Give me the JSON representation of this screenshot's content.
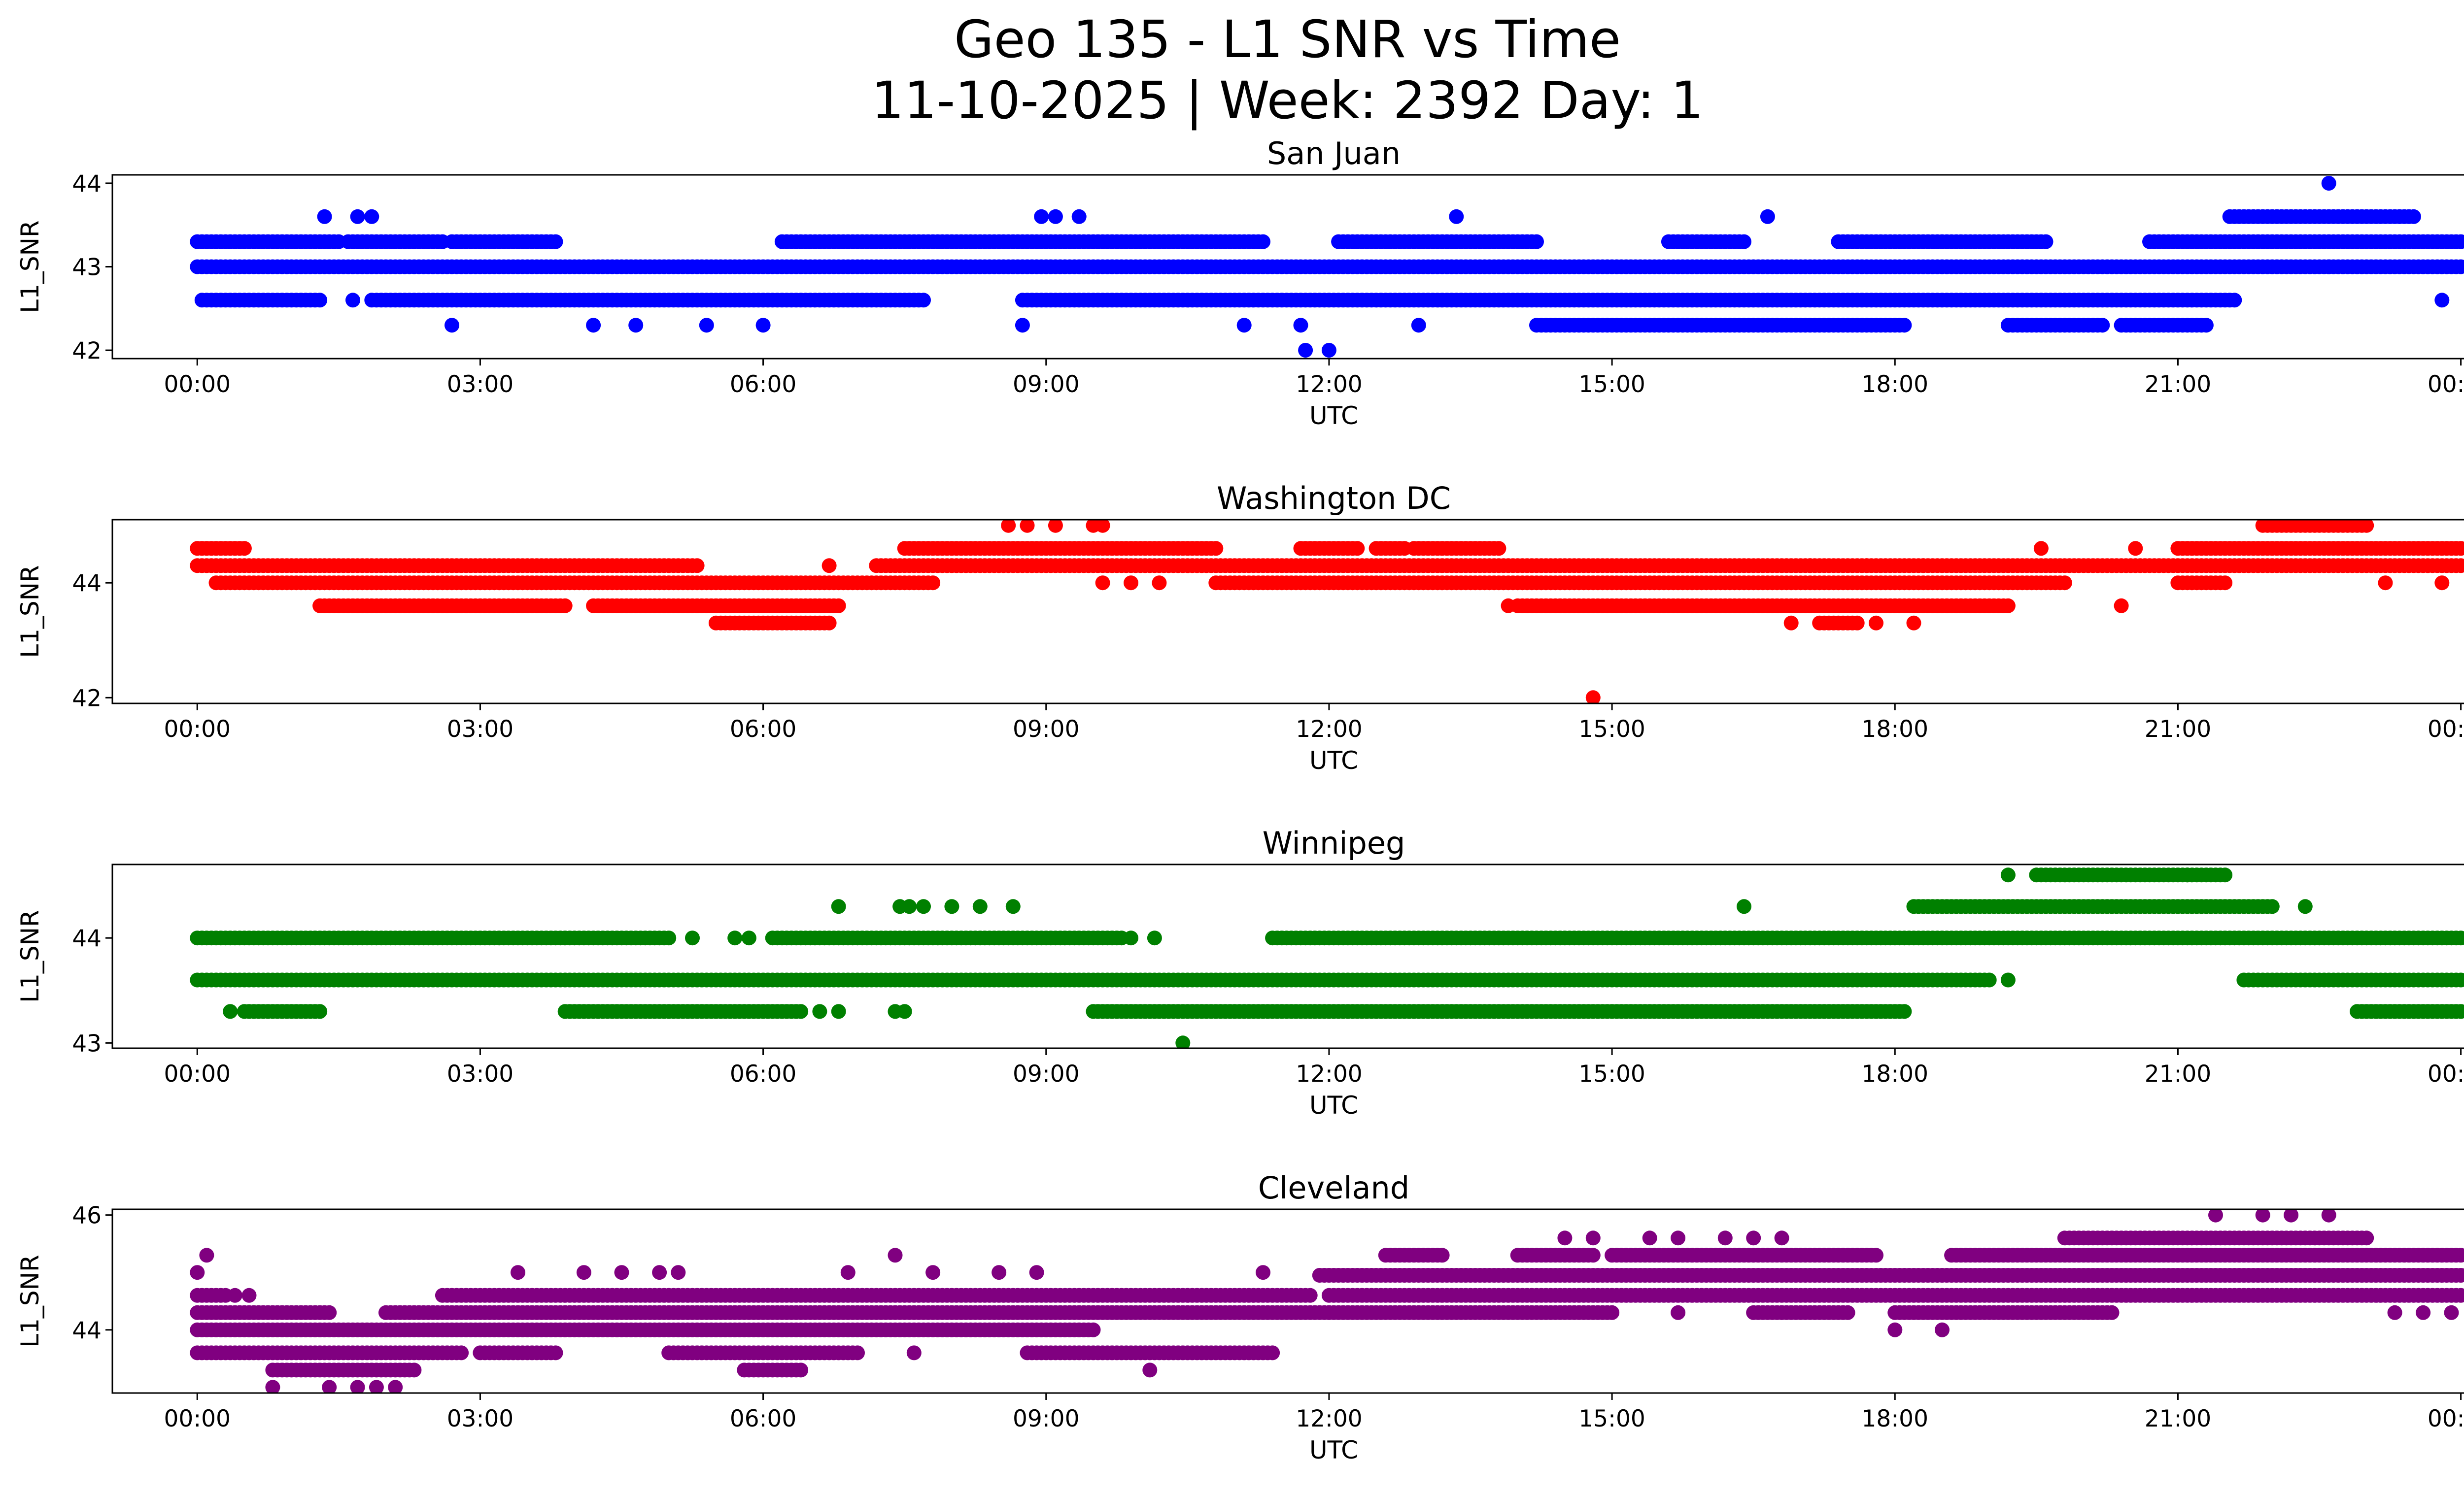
{
  "figure": {
    "title_line1": "Geo 135 - L1 SNR vs Time",
    "title_line2": "11-10-2025 | Week: 2392 Day: 1"
  },
  "chart_data": [
    {
      "type": "scatter",
      "title": "San Juan",
      "xlabel": "UTC",
      "ylabel": "L1_SNR",
      "color": "#0000ff",
      "xlim": [
        -0.9,
        25.0
      ],
      "ylim": [
        41.9,
        44.1
      ],
      "yticks": [
        42,
        43,
        44
      ],
      "xticks": [
        0,
        3,
        6,
        9,
        12,
        15,
        18,
        21,
        24
      ],
      "xtick_labels": [
        "00:00",
        "03:00",
        "06:00",
        "09:00",
        "12:00",
        "15:00",
        "18:00",
        "21:00",
        "00:00"
      ],
      "series": [
        {
          "name": "San Juan",
          "bands": [
            {
              "y": 43.0,
              "segments": [
                [
                  0,
                  24
                ]
              ]
            },
            {
              "y": 43.3,
              "segments": [
                [
                  0,
                  1.5
                ],
                [
                  1.6,
                  2.6
                ],
                [
                  2.7,
                  3.8
                ],
                [
                  6.2,
                  11.3
                ],
                [
                  12.1,
                  14.2
                ],
                [
                  15.6,
                  16.4
                ],
                [
                  17.4,
                  19.6
                ],
                [
                  20.7,
                  24
                ]
              ]
            },
            {
              "y": 42.6,
              "segments": [
                [
                  0.05,
                  1.3
                ],
                [
                  1.85,
                  7.7
                ],
                [
                  8.75,
                  21.6
                ]
              ]
            },
            {
              "y": 42.3,
              "segments": [
                [
                  14.2,
                  18.1
                ],
                [
                  19.2,
                  20.2
                ],
                [
                  20.4,
                  21.3
                ]
              ]
            },
            {
              "y": 43.6,
              "segments": [
                [
                  21.55,
                  23.5
                ]
              ]
            }
          ],
          "points": [
            [
              1.35,
              43.6
            ],
            [
              1.7,
              43.6
            ],
            [
              1.85,
              43.6
            ],
            [
              8.95,
              43.6
            ],
            [
              9.1,
              43.6
            ],
            [
              9.35,
              43.6
            ],
            [
              13.35,
              43.6
            ],
            [
              16.65,
              43.6
            ],
            [
              23.35,
              43.6
            ],
            [
              22.6,
              44.0
            ],
            [
              11.75,
              42.0
            ],
            [
              12.0,
              42.0
            ],
            [
              2.7,
              42.3
            ],
            [
              4.2,
              42.3
            ],
            [
              4.65,
              42.3
            ],
            [
              5.4,
              42.3
            ],
            [
              6.0,
              42.3
            ],
            [
              8.75,
              42.3
            ],
            [
              11.1,
              42.3
            ],
            [
              11.7,
              42.3
            ],
            [
              12.95,
              42.3
            ],
            [
              1.65,
              42.6
            ],
            [
              23.8,
              42.6
            ],
            [
              22.6,
              43.0
            ]
          ]
        }
      ]
    },
    {
      "type": "scatter",
      "title": "Washington DC",
      "xlabel": "UTC",
      "ylabel": "L1_SNR",
      "color": "#ff0000",
      "xlim": [
        -0.9,
        25.0
      ],
      "ylim": [
        41.9,
        45.1
      ],
      "yticks": [
        42,
        44
      ],
      "xticks": [
        0,
        3,
        6,
        9,
        12,
        15,
        18,
        21,
        24
      ],
      "xtick_labels": [
        "00:00",
        "03:00",
        "06:00",
        "09:00",
        "12:00",
        "15:00",
        "18:00",
        "21:00",
        "00:00"
      ],
      "series": [
        {
          "name": "Washington DC",
          "bands": [
            {
              "y": 44.3,
              "segments": [
                [
                  0,
                  5.3
                ],
                [
                  7.2,
                  24
                ]
              ]
            },
            {
              "y": 44.6,
              "segments": [
                [
                  0,
                  0.5
                ],
                [
                  7.5,
                  10.8
                ],
                [
                  11.7,
                  12.3
                ],
                [
                  12.5,
                  12.8
                ],
                [
                  12.9,
                  13.8
                ],
                [
                  21.0,
                  24
                ]
              ]
            },
            {
              "y": 44.0,
              "segments": [
                [
                  0.2,
                  7.8
                ],
                [
                  10.8,
                  19.8
                ],
                [
                  21.0,
                  21.5
                ]
              ]
            },
            {
              "y": 43.6,
              "segments": [
                [
                  1.3,
                  3.9
                ],
                [
                  4.2,
                  6.8
                ],
                [
                  14.0,
                  19.2
                ]
              ]
            },
            {
              "y": 43.3,
              "segments": [
                [
                  5.5,
                  6.7
                ],
                [
                  17.2,
                  17.6
                ]
              ]
            },
            {
              "y": 45.0,
              "segments": [
                [
                  21.9,
                  23.0
                ]
              ]
            }
          ],
          "points": [
            [
              8.6,
              45.0
            ],
            [
              8.8,
              45.0
            ],
            [
              9.1,
              45.0
            ],
            [
              9.5,
              45.0
            ],
            [
              9.6,
              45.0
            ],
            [
              6.7,
              44.3
            ],
            [
              14.8,
              42.0
            ],
            [
              13.9,
              43.6
            ],
            [
              20.4,
              43.6
            ],
            [
              19.55,
              44.6
            ],
            [
              20.55,
              44.6
            ],
            [
              17.1,
              44.3
            ],
            [
              17.7,
              44.3
            ],
            [
              18.3,
              44.3
            ],
            [
              16.9,
              43.3
            ],
            [
              17.8,
              43.3
            ],
            [
              18.2,
              43.3
            ],
            [
              9.6,
              44.0
            ],
            [
              9.9,
              44.0
            ],
            [
              10.2,
              44.0
            ],
            [
              23.2,
              44.0
            ],
            [
              23.8,
              44.0
            ]
          ]
        }
      ]
    },
    {
      "type": "scatter",
      "title": "Winnipeg",
      "xlabel": "UTC",
      "ylabel": "L1_SNR",
      "color": "#008000",
      "xlim": [
        -0.9,
        25.0
      ],
      "ylim": [
        42.95,
        44.7
      ],
      "yticks": [
        43,
        44
      ],
      "xticks": [
        0,
        3,
        6,
        9,
        12,
        15,
        18,
        21,
        24
      ],
      "xtick_labels": [
        "00:00",
        "03:00",
        "06:00",
        "09:00",
        "12:00",
        "15:00",
        "18:00",
        "21:00",
        "00:00"
      ],
      "series": [
        {
          "name": "Winnipeg",
          "bands": [
            {
              "y": 44.0,
              "segments": [
                [
                  0,
                  5.0
                ],
                [
                  6.1,
                  9.8
                ],
                [
                  11.4,
                  24
                ]
              ]
            },
            {
              "y": 43.6,
              "segments": [
                [
                  0,
                  19.0
                ],
                [
                  21.7,
                  24
                ]
              ]
            },
            {
              "y": 43.3,
              "segments": [
                [
                  0.5,
                  1.3
                ],
                [
                  3.9,
                  6.4
                ],
                [
                  9.5,
                  18.1
                ],
                [
                  22.9,
                  24
                ]
              ]
            },
            {
              "y": 44.3,
              "segments": [
                [
                  18.2,
                  22.0
                ]
              ]
            },
            {
              "y": 44.6,
              "segments": [
                [
                  19.5,
                  21.5
                ]
              ]
            }
          ],
          "points": [
            [
              0.35,
              43.3
            ],
            [
              6.6,
              43.3
            ],
            [
              6.8,
              43.3
            ],
            [
              7.4,
              43.3
            ],
            [
              7.5,
              43.3
            ],
            [
              5.25,
              44.0
            ],
            [
              5.7,
              44.0
            ],
            [
              5.85,
              44.0
            ],
            [
              9.9,
              44.0
            ],
            [
              10.15,
              44.0
            ],
            [
              6.8,
              44.3
            ],
            [
              7.45,
              44.3
            ],
            [
              7.55,
              44.3
            ],
            [
              7.7,
              44.3
            ],
            [
              8.0,
              44.3
            ],
            [
              8.3,
              44.3
            ],
            [
              8.65,
              44.3
            ],
            [
              16.4,
              44.3
            ],
            [
              22.35,
              44.3
            ],
            [
              19.2,
              44.6
            ],
            [
              19.2,
              43.6
            ],
            [
              10.45,
              43.0
            ],
            [
              21.1,
              44.6
            ]
          ]
        }
      ]
    },
    {
      "type": "scatter",
      "title": "Cleveland",
      "xlabel": "UTC",
      "ylabel": "L1_SNR",
      "color": "#800080",
      "xlim": [
        -0.9,
        25.0
      ],
      "ylim": [
        42.9,
        46.1
      ],
      "yticks": [
        44,
        46
      ],
      "xticks": [
        0,
        3,
        6,
        9,
        12,
        15,
        18,
        21,
        24
      ],
      "xtick_labels": [
        "00:00",
        "03:00",
        "06:00",
        "09:00",
        "12:00",
        "15:00",
        "18:00",
        "21:00",
        "00:00"
      ],
      "series": [
        {
          "name": "Cleveland",
          "bands": [
            {
              "y": 44.3,
              "segments": [
                [
                  0,
                  1.4
                ],
                [
                  2.0,
                  12.0
                ]
              ]
            },
            {
              "y": 44.0,
              "segments": [
                [
                  0,
                  9.5
                ]
              ]
            },
            {
              "y": 43.6,
              "segments": [
                [
                  0,
                  2.8
                ],
                [
                  3.0,
                  3.8
                ],
                [
                  5.0,
                  7.0
                ],
                [
                  8.8,
                  11.4
                ]
              ]
            },
            {
              "y": 44.6,
              "segments": [
                [
                  0,
                  0.3
                ],
                [
                  2.6,
                  11.8
                ],
                [
                  12.0,
                  24
                ]
              ]
            },
            {
              "y": 44.95,
              "segments": [
                [
                  11.9,
                  24
                ]
              ]
            },
            {
              "y": 45.3,
              "segments": [
                [
                  12.6,
                  13.2
                ],
                [
                  14.0,
                  14.8
                ],
                [
                  15.0,
                  17.8
                ],
                [
                  18.6,
                  24
                ]
              ]
            },
            {
              "y": 45.6,
              "segments": [
                [
                  19.8,
                  23.0
                ]
              ]
            },
            {
              "y": 44.3,
              "segments": [
                [
                  12.0,
                  15.0
                ],
                [
                  16.5,
                  17.5
                ],
                [
                  18.0,
                  20.3
                ]
              ]
            },
            {
              "y": 43.3,
              "segments": [
                [
                  0.8,
                  2.3
                ],
                [
                  5.8,
                  6.4
                ]
              ]
            }
          ],
          "points": [
            [
              0.1,
              45.3
            ],
            [
              0.0,
              45.0
            ],
            [
              0.4,
              44.6
            ],
            [
              0.55,
              44.6
            ],
            [
              0.8,
              43.0
            ],
            [
              1.4,
              43.0
            ],
            [
              1.7,
              43.0
            ],
            [
              1.9,
              43.0
            ],
            [
              2.1,
              43.0
            ],
            [
              3.4,
              45.0
            ],
            [
              4.1,
              45.0
            ],
            [
              4.5,
              45.0
            ],
            [
              4.9,
              45.0
            ],
            [
              5.1,
              45.0
            ],
            [
              6.9,
              45.0
            ],
            [
              7.4,
              45.3
            ],
            [
              7.8,
              45.0
            ],
            [
              8.5,
              45.0
            ],
            [
              8.9,
              45.0
            ],
            [
              7.6,
              43.6
            ],
            [
              10.1,
              43.3
            ],
            [
              11.3,
              45.0
            ],
            [
              14.5,
              45.6
            ],
            [
              14.8,
              45.6
            ],
            [
              15.4,
              45.6
            ],
            [
              15.7,
              45.6
            ],
            [
              16.2,
              45.6
            ],
            [
              16.5,
              45.6
            ],
            [
              16.8,
              45.6
            ],
            [
              16.8,
              44.3
            ],
            [
              15.7,
              44.3
            ],
            [
              18.0,
              44.0
            ],
            [
              18.5,
              44.0
            ],
            [
              21.4,
              46.0
            ],
            [
              21.9,
              46.0
            ],
            [
              22.2,
              46.0
            ],
            [
              22.6,
              46.0
            ],
            [
              23.3,
              44.3
            ],
            [
              23.6,
              44.3
            ],
            [
              23.9,
              44.3
            ]
          ]
        }
      ]
    }
  ]
}
